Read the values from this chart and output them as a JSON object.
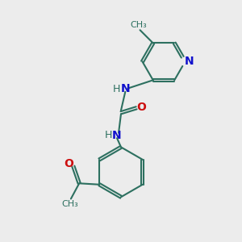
{
  "bg_color": "#ececec",
  "bond_color": "#2d7060",
  "bond_width": 1.5,
  "N_color": "#1010cc",
  "O_color": "#cc1010",
  "font_size": 9,
  "figsize": [
    3.0,
    3.0
  ],
  "dpi": 100,
  "xlim": [
    0,
    10
  ],
  "ylim": [
    0,
    10
  ]
}
